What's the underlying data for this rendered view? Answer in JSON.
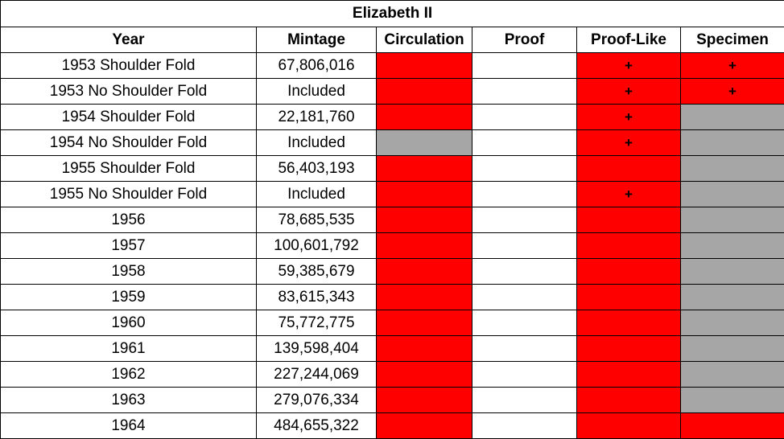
{
  "table": {
    "title": "Elizabeth II",
    "header": [
      "Year",
      "Mintage",
      "Circulation",
      "Proof",
      "Proof-Like",
      "Specimen"
    ],
    "rows": [
      {
        "year": "1953 Shoulder Fold",
        "mintage": "67,806,016",
        "cells": [
          {
            "fill": "#ff0000"
          },
          {
            "fill": "#ffffff"
          },
          {
            "fill": "#ff0000",
            "text": "+"
          },
          {
            "fill": "#ff0000",
            "text": "+"
          }
        ]
      },
      {
        "year": "1953 No Shoulder Fold",
        "mintage": "Included",
        "cells": [
          {
            "fill": "#ff0000"
          },
          {
            "fill": "#ffffff"
          },
          {
            "fill": "#ff0000",
            "text": "+"
          },
          {
            "fill": "#ff0000",
            "text": "+"
          }
        ]
      },
      {
        "year": "1954 Shoulder Fold",
        "mintage": "22,181,760",
        "cells": [
          {
            "fill": "#ff0000"
          },
          {
            "fill": "#ffffff"
          },
          {
            "fill": "#ff0000",
            "text": "+"
          },
          {
            "fill": "#a6a6a6"
          }
        ]
      },
      {
        "year": "1954 No Shoulder Fold",
        "mintage": "Included",
        "cells": [
          {
            "fill": "#a6a6a6"
          },
          {
            "fill": "#ffffff"
          },
          {
            "fill": "#ff0000",
            "text": "+"
          },
          {
            "fill": "#a6a6a6"
          }
        ]
      },
      {
        "year": "1955 Shoulder Fold",
        "mintage": "56,403,193",
        "cells": [
          {
            "fill": "#ff0000"
          },
          {
            "fill": "#ffffff"
          },
          {
            "fill": "#ff0000"
          },
          {
            "fill": "#a6a6a6"
          }
        ]
      },
      {
        "year": "1955 No Shoulder Fold",
        "mintage": "Included",
        "cells": [
          {
            "fill": "#ff0000"
          },
          {
            "fill": "#ffffff"
          },
          {
            "fill": "#ff0000",
            "text": "+"
          },
          {
            "fill": "#a6a6a6"
          }
        ]
      },
      {
        "year": "1956",
        "mintage": "78,685,535",
        "cells": [
          {
            "fill": "#ff0000"
          },
          {
            "fill": "#ffffff"
          },
          {
            "fill": "#ff0000"
          },
          {
            "fill": "#a6a6a6"
          }
        ]
      },
      {
        "year": "1957",
        "mintage": "100,601,792",
        "cells": [
          {
            "fill": "#ff0000"
          },
          {
            "fill": "#ffffff"
          },
          {
            "fill": "#ff0000"
          },
          {
            "fill": "#a6a6a6"
          }
        ]
      },
      {
        "year": "1958",
        "mintage": "59,385,679",
        "cells": [
          {
            "fill": "#ff0000"
          },
          {
            "fill": "#ffffff"
          },
          {
            "fill": "#ff0000"
          },
          {
            "fill": "#a6a6a6"
          }
        ]
      },
      {
        "year": "1959",
        "mintage": "83,615,343",
        "cells": [
          {
            "fill": "#ff0000"
          },
          {
            "fill": "#ffffff"
          },
          {
            "fill": "#ff0000"
          },
          {
            "fill": "#a6a6a6"
          }
        ]
      },
      {
        "year": "1960",
        "mintage": "75,772,775",
        "cells": [
          {
            "fill": "#ff0000"
          },
          {
            "fill": "#ffffff"
          },
          {
            "fill": "#ff0000"
          },
          {
            "fill": "#a6a6a6"
          }
        ]
      },
      {
        "year": "1961",
        "mintage": "139,598,404",
        "cells": [
          {
            "fill": "#ff0000"
          },
          {
            "fill": "#ffffff"
          },
          {
            "fill": "#ff0000"
          },
          {
            "fill": "#a6a6a6"
          }
        ]
      },
      {
        "year": "1962",
        "mintage": "227,244,069",
        "cells": [
          {
            "fill": "#ff0000"
          },
          {
            "fill": "#ffffff"
          },
          {
            "fill": "#ff0000"
          },
          {
            "fill": "#a6a6a6"
          }
        ]
      },
      {
        "year": "1963",
        "mintage": "279,076,334",
        "cells": [
          {
            "fill": "#ff0000"
          },
          {
            "fill": "#ffffff"
          },
          {
            "fill": "#ff0000"
          },
          {
            "fill": "#a6a6a6"
          }
        ]
      },
      {
        "year": "1964",
        "mintage": "484,655,322",
        "cells": [
          {
            "fill": "#ff0000"
          },
          {
            "fill": "#ffffff"
          },
          {
            "fill": "#ff0000"
          },
          {
            "fill": "#ff0000"
          }
        ]
      }
    ]
  }
}
